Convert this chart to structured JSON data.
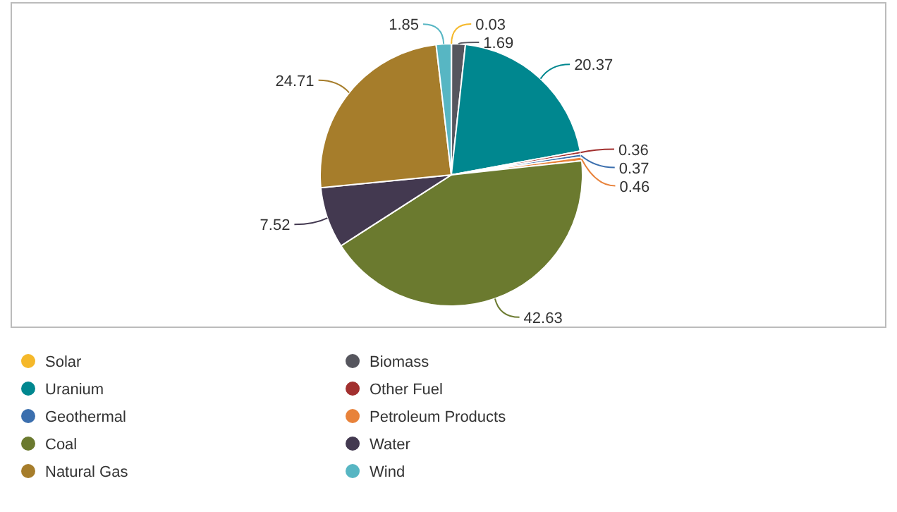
{
  "chart_data": {
    "type": "pie",
    "categories": [
      "Solar",
      "Biomass",
      "Uranium",
      "Other Fuel",
      "Geothermal",
      "Petroleum Products",
      "Coal",
      "Water",
      "Natural Gas",
      "Wind"
    ],
    "values": [
      0.03,
      1.69,
      20.37,
      0.36,
      0.37,
      0.46,
      42.63,
      7.52,
      24.71,
      1.85
    ],
    "colors": [
      "#f5b82a",
      "#56565e",
      "#00878f",
      "#a2302f",
      "#3b6fae",
      "#e8823a",
      "#6b7a2f",
      "#433950",
      "#a67d2b",
      "#57b6c3"
    ],
    "data_labels": true,
    "legend": "bottom"
  }
}
